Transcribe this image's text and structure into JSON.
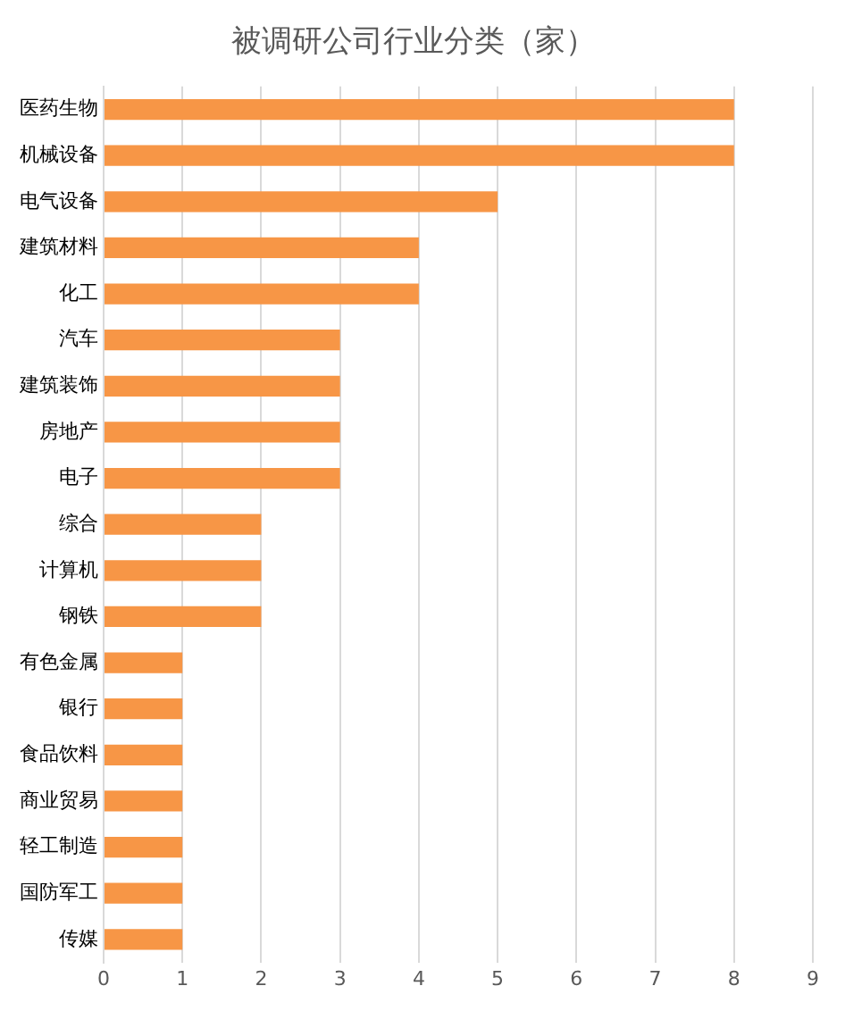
{
  "chart_data": {
    "type": "bar",
    "orientation": "horizontal",
    "title": "被调研公司行业分类（家）",
    "categories": [
      "医药生物",
      "机械设备",
      "电气设备",
      "建筑材料",
      "化工",
      "汽车",
      "建筑装饰",
      "房地产",
      "电子",
      "综合",
      "计算机",
      "钢铁",
      "有色金属",
      "银行",
      "食品饮料",
      "商业贸易",
      "轻工制造",
      "国防军工",
      "传媒"
    ],
    "values": [
      8,
      8,
      5,
      4,
      4,
      3,
      3,
      3,
      3,
      2,
      2,
      2,
      1,
      1,
      1,
      1,
      1,
      1,
      1
    ],
    "color": "#f79646",
    "xlim": [
      0,
      9
    ],
    "xticks": [
      0,
      1,
      2,
      3,
      4,
      5,
      6,
      7,
      8,
      9
    ],
    "grid": "x",
    "legend": false
  }
}
